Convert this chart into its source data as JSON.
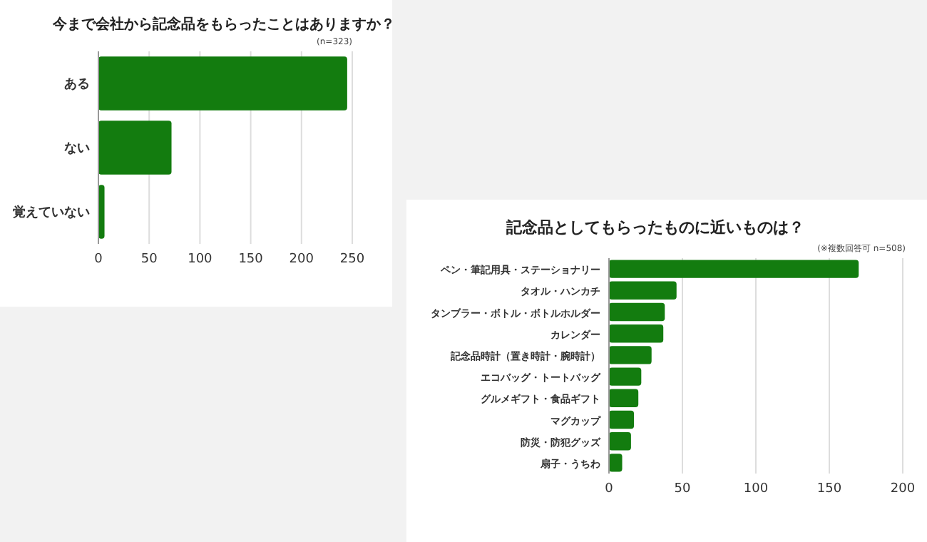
{
  "chart_data": [
    {
      "type": "bar",
      "orientation": "horizontal",
      "title": "今まで会社から記念品をもらったことはありますか？",
      "annotations": [
        "(n=323)"
      ],
      "categories": [
        "ある",
        "ない",
        "覚えていない"
      ],
      "values": [
        245,
        72,
        6
      ],
      "color": "#137c0f",
      "xlim": [
        0,
        250
      ],
      "xticks": [
        0,
        50,
        100,
        150,
        200,
        250
      ],
      "grid": "x"
    },
    {
      "type": "bar",
      "orientation": "horizontal",
      "title": "記念品としてもらったものに近いものは？",
      "annotations": [
        "(※複数回答可 n=508)"
      ],
      "categories": [
        "ペン・筆記用具・ステーショナリー",
        "タオル・ハンカチ",
        "タンブラー・ボトル・ボトルホルダー",
        "カレンダー",
        "記念品時計（置き時計・腕時計）",
        "エコバッグ・トートバッグ",
        "グルメギフト・食品ギフト",
        "マグカップ",
        "防災・防犯グッズ",
        "扇子・うちわ"
      ],
      "values": [
        170,
        46,
        38,
        37,
        29,
        22,
        20,
        17,
        15,
        9
      ],
      "color": "#137c0f",
      "xlim": [
        0,
        200
      ],
      "xticks": [
        0,
        50,
        100,
        150,
        200
      ],
      "grid": "x"
    }
  ]
}
